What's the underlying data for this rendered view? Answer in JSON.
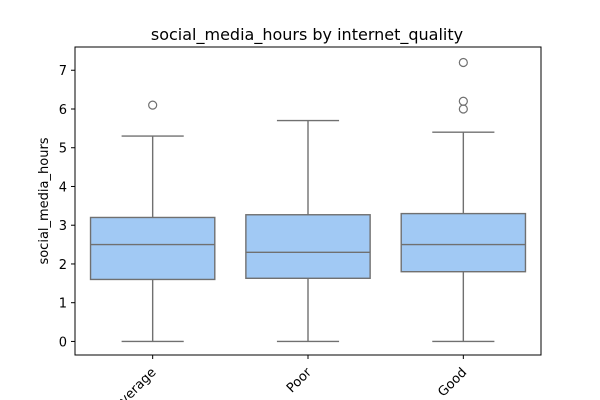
{
  "chart_data": {
    "type": "box",
    "title": "social_media_hours by internet_quality",
    "xlabel": "",
    "ylabel": "social_media_hours",
    "ylim": [
      -0.35,
      7.6
    ],
    "yticks": [
      0,
      1,
      2,
      3,
      4,
      5,
      6,
      7
    ],
    "categories": [
      "Average",
      "Poor",
      "Good"
    ],
    "boxes": [
      {
        "category": "Average",
        "whisker_low": 0.0,
        "q1": 1.6,
        "median": 2.5,
        "q3": 3.2,
        "whisker_high": 5.3,
        "outliers": [
          6.1
        ]
      },
      {
        "category": "Poor",
        "whisker_low": 0.0,
        "q1": 1.63,
        "median": 2.3,
        "q3": 3.27,
        "whisker_high": 5.7,
        "outliers": []
      },
      {
        "category": "Good",
        "whisker_low": 0.0,
        "q1": 1.8,
        "median": 2.5,
        "q3": 3.3,
        "whisker_high": 5.4,
        "outliers": [
          6.0,
          6.2,
          7.2
        ]
      }
    ],
    "colors": {
      "box_fill": "#a1c9f4",
      "line": "#707070"
    },
    "grid": false,
    "legend": "none"
  }
}
